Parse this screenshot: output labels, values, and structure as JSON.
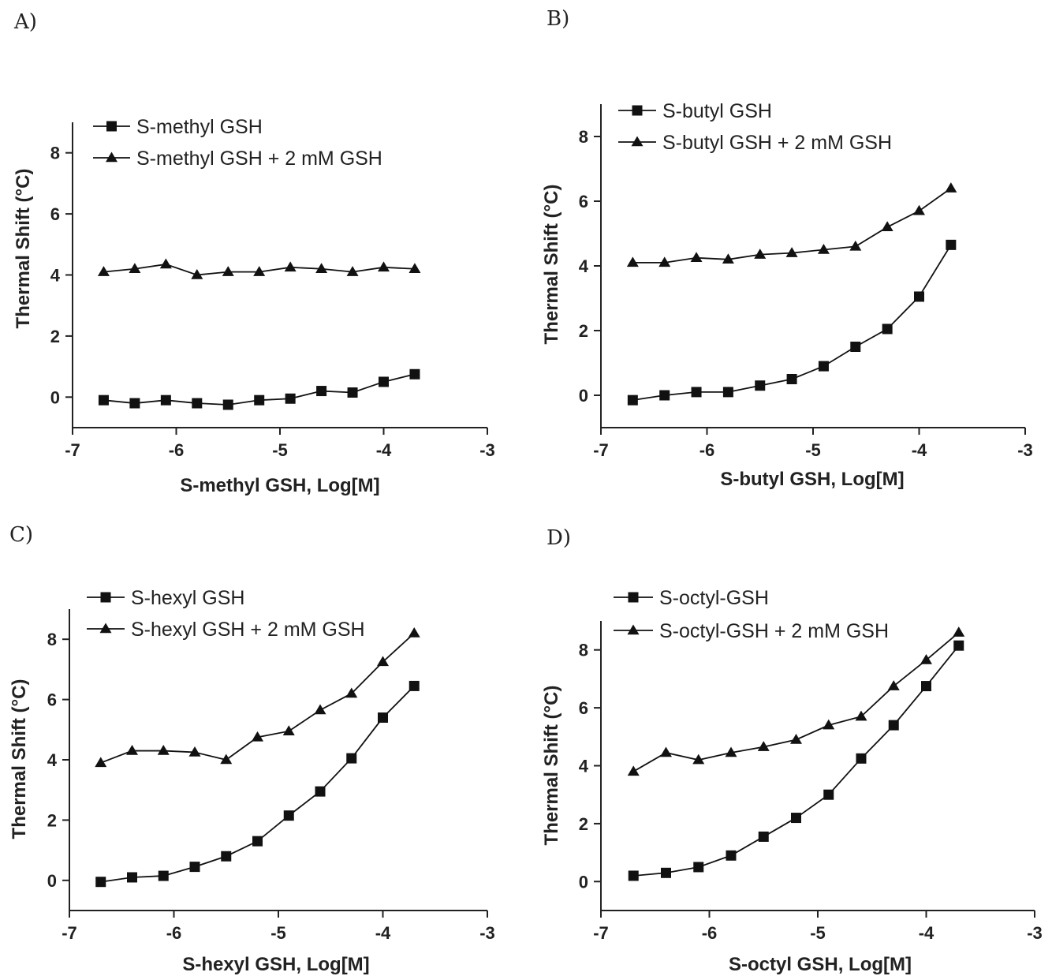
{
  "chart_data": [
    {
      "panel": "A)",
      "type": "line",
      "xlabel": "S-methyl GSH, Log[M]",
      "ylabel": "Thermal Shift (°C)",
      "xlim": [
        -7,
        -3
      ],
      "ylim": [
        -1,
        9
      ],
      "xticks": [
        -7,
        -6,
        -5,
        -4,
        -3
      ],
      "yticks": [
        0,
        2,
        4,
        6,
        8
      ],
      "x": [
        -6.7,
        -6.4,
        -6.1,
        -5.8,
        -5.5,
        -5.2,
        -4.9,
        -4.6,
        -4.3,
        -4.0,
        -3.7
      ],
      "series": [
        {
          "name": "S-methyl GSH",
          "marker": "square",
          "values": [
            -0.1,
            -0.2,
            -0.1,
            -0.2,
            -0.25,
            -0.1,
            -0.05,
            0.2,
            0.15,
            0.5,
            0.75
          ]
        },
        {
          "name": "S-methyl GSH + 2 mM GSH",
          "marker": "triangle",
          "values": [
            4.1,
            4.2,
            4.35,
            4.0,
            4.1,
            4.1,
            4.25,
            4.2,
            4.1,
            4.25,
            4.2
          ]
        }
      ],
      "legend": "top-left"
    },
    {
      "panel": "B)",
      "type": "line",
      "xlabel": "S-butyl GSH, Log[M]",
      "ylabel": "Thermal Shift (°C)",
      "xlim": [
        -7,
        -3
      ],
      "ylim": [
        -1,
        9
      ],
      "xticks": [
        -7,
        -6,
        -5,
        -4,
        -3
      ],
      "yticks": [
        0,
        2,
        4,
        6,
        8
      ],
      "x": [
        -6.7,
        -6.4,
        -6.1,
        -5.8,
        -5.5,
        -5.2,
        -4.9,
        -4.6,
        -4.3,
        -4.0,
        -3.7
      ],
      "series": [
        {
          "name": "S-butyl GSH",
          "marker": "square",
          "values": [
            -0.15,
            0.0,
            0.1,
            0.1,
            0.3,
            0.5,
            0.9,
            1.5,
            2.05,
            3.05,
            4.65
          ]
        },
        {
          "name": "S-butyl GSH + 2 mM GSH",
          "marker": "triangle",
          "values": [
            4.1,
            4.1,
            4.25,
            4.2,
            4.35,
            4.4,
            4.5,
            4.6,
            5.2,
            5.7,
            6.4
          ]
        }
      ],
      "legend": "top-left"
    },
    {
      "panel": "C)",
      "type": "line",
      "xlabel": "S-hexyl GSH, Log[M]",
      "ylabel": "Thermal Shift (°C)",
      "xlim": [
        -7,
        -3
      ],
      "ylim": [
        -1,
        9
      ],
      "xticks": [
        -7,
        -6,
        -5,
        -4,
        -3
      ],
      "yticks": [
        0,
        2,
        4,
        6,
        8
      ],
      "x": [
        -6.7,
        -6.4,
        -6.1,
        -5.8,
        -5.5,
        -5.2,
        -4.9,
        -4.6,
        -4.3,
        -4.0,
        -3.7
      ],
      "series": [
        {
          "name": "S-hexyl GSH",
          "marker": "square",
          "values": [
            -0.05,
            0.1,
            0.15,
            0.45,
            0.8,
            1.3,
            2.15,
            2.95,
            4.05,
            5.4,
            6.45
          ]
        },
        {
          "name": "S-hexyl GSH + 2 mM GSH",
          "marker": "triangle",
          "values": [
            3.9,
            4.3,
            4.3,
            4.25,
            4.0,
            4.75,
            4.95,
            5.65,
            6.2,
            7.25,
            8.2
          ]
        }
      ],
      "legend": "top-left"
    },
    {
      "panel": "D)",
      "type": "line",
      "xlabel": "S-octyl GSH, Log[M]",
      "ylabel": "Thermal Shift (°C)",
      "xlim": [
        -7,
        -3
      ],
      "ylim": [
        -1,
        9
      ],
      "xticks": [
        -7,
        -6,
        -5,
        -4,
        -3
      ],
      "yticks": [
        0,
        2,
        4,
        6,
        8
      ],
      "x": [
        -6.7,
        -6.4,
        -6.1,
        -5.8,
        -5.5,
        -5.2,
        -4.9,
        -4.6,
        -4.3,
        -4.0,
        -3.7
      ],
      "series": [
        {
          "name": "S-octyl-GSH",
          "marker": "square",
          "values": [
            0.2,
            0.3,
            0.5,
            0.9,
            1.55,
            2.2,
            3.0,
            4.25,
            5.4,
            6.75,
            8.15
          ]
        },
        {
          "name": "S-octyl-GSH + 2 mM GSH",
          "marker": "triangle",
          "values": [
            3.8,
            4.45,
            4.2,
            4.45,
            4.65,
            4.9,
            5.4,
            5.7,
            6.75,
            7.65,
            8.6
          ]
        }
      ],
      "legend": "top-left"
    }
  ]
}
